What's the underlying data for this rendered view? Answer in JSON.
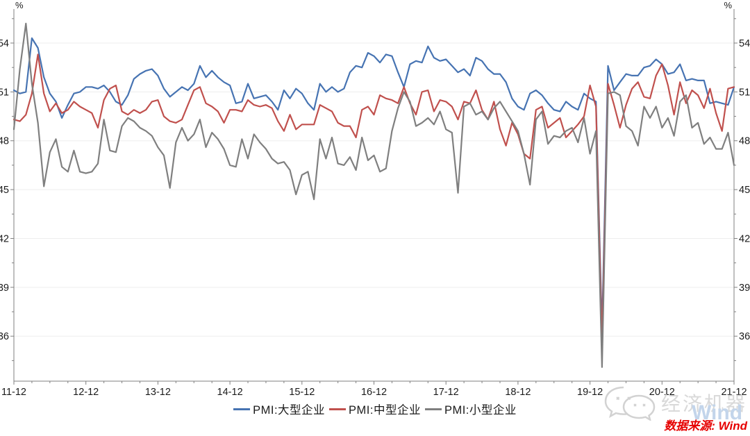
{
  "source_note": "数据来源: Wind",
  "watermark": {
    "brand_text": "经济机器",
    "wind_text": "Wind"
  },
  "colors": {
    "large": "#4673B2",
    "medium": "#C0504D",
    "small": "#7F7F7F",
    "axis": "#7F7F7F",
    "gridline": "#ededed",
    "tick_label": "#1a1a1a",
    "source_red": "#e60000",
    "watermark_gray": "#d9d9d9",
    "watermark_blue": "#c3d5eb"
  },
  "chart_data": {
    "type": "line",
    "title": "",
    "xlabel": "",
    "ylabel": "",
    "unit_label": "%",
    "grid": "horizontal",
    "legend_position": "bottom",
    "x_start": "2011-12",
    "x_end": "2021-12",
    "frequency": "monthly",
    "x_tick_labels": [
      "11-12",
      "12-12",
      "13-12",
      "14-12",
      "15-12",
      "16-12",
      "17-12",
      "18-12",
      "19-12",
      "20-12",
      "21-12"
    ],
    "y_ticks": [
      54,
      51,
      48,
      45,
      42,
      39,
      36
    ],
    "ylim": [
      33.3,
      55.9
    ],
    "series": [
      {
        "name": "PMI:大型企业",
        "color": "#4673B2",
        "values": [
          51.1,
          50.9,
          51.0,
          54.3,
          53.7,
          51.9,
          50.9,
          50.4,
          49.4,
          50.2,
          50.9,
          51.0,
          51.3,
          51.3,
          51.2,
          51.4,
          51.0,
          50.4,
          50.2,
          50.8,
          51.8,
          52.1,
          52.3,
          52.4,
          52.0,
          51.2,
          50.7,
          51.0,
          51.3,
          51.1,
          51.5,
          52.6,
          51.9,
          52.3,
          51.9,
          51.6,
          51.4,
          50.3,
          50.4,
          51.5,
          50.6,
          50.7,
          50.8,
          50.4,
          49.9,
          51.1,
          50.6,
          51.2,
          50.9,
          50.3,
          49.9,
          51.5,
          51.0,
          51.3,
          51.0,
          51.2,
          52.2,
          52.6,
          52.5,
          53.4,
          53.2,
          52.8,
          53.3,
          53.2,
          52.2,
          51.3,
          52.7,
          52.9,
          52.8,
          53.8,
          53.1,
          52.9,
          53.0,
          52.6,
          52.2,
          52.4,
          52.0,
          53.1,
          52.9,
          52.4,
          52.1,
          52.1,
          51.6,
          50.6,
          50.1,
          49.9,
          50.9,
          51.1,
          50.8,
          50.3,
          49.9,
          49.8,
          50.4,
          50.1,
          49.9,
          50.9,
          50.6,
          50.4,
          36.3,
          52.6,
          51.1,
          51.6,
          52.1,
          52.0,
          52.0,
          52.5,
          52.6,
          53.0,
          52.7,
          52.1,
          52.2,
          52.7,
          51.7,
          51.8,
          51.7,
          51.7,
          50.3,
          50.4,
          50.3,
          50.2,
          51.3
        ]
      },
      {
        "name": "PMI:中型企业",
        "color": "#C0504D",
        "values": [
          49.3,
          49.2,
          49.6,
          50.9,
          53.3,
          50.9,
          49.8,
          50.3,
          49.7,
          49.9,
          50.4,
          50.1,
          49.9,
          49.7,
          48.8,
          50.5,
          51.2,
          51.4,
          49.8,
          49.6,
          49.9,
          49.7,
          49.9,
          50.4,
          50.5,
          49.5,
          49.2,
          49.1,
          49.3,
          50.2,
          51.1,
          51.3,
          50.3,
          50.1,
          49.8,
          49.1,
          49.9,
          49.9,
          49.8,
          50.5,
          50.2,
          50.1,
          50.2,
          50.0,
          49.2,
          48.6,
          49.6,
          48.7,
          49.0,
          49.0,
          49.0,
          50.2,
          50.0,
          49.8,
          49.1,
          48.9,
          48.9,
          48.2,
          49.9,
          50.1,
          49.6,
          50.8,
          50.6,
          50.5,
          50.3,
          51.3,
          50.3,
          49.6,
          51.0,
          51.1,
          49.8,
          50.5,
          50.4,
          50.1,
          49.3,
          50.4,
          50.3,
          51.1,
          49.9,
          49.3,
          50.4,
          48.7,
          47.7,
          49.1,
          48.4,
          47.2,
          46.9,
          49.9,
          50.1,
          48.8,
          49.1,
          49.4,
          48.2,
          48.6,
          49.0,
          49.5,
          51.4,
          50.1,
          35.5,
          51.5,
          50.2,
          48.8,
          50.2,
          51.2,
          51.6,
          50.7,
          50.6,
          52.0,
          52.7,
          51.4,
          49.6,
          51.6,
          50.3,
          51.1,
          50.8,
          50.0,
          51.2,
          49.7,
          48.6,
          51.2,
          51.3
        ]
      },
      {
        "name": "PMI:小型企业",
        "color": "#7F7F7F",
        "values": [
          48.7,
          52.4,
          55.2,
          51.5,
          49.1,
          45.2,
          47.3,
          48.1,
          46.4,
          46.1,
          47.4,
          46.1,
          46.0,
          46.1,
          46.6,
          49.3,
          47.4,
          47.3,
          48.9,
          49.4,
          49.2,
          48.8,
          48.6,
          48.3,
          47.6,
          47.1,
          45.1,
          47.9,
          48.8,
          48.0,
          48.4,
          49.3,
          47.6,
          48.5,
          48.1,
          47.5,
          46.5,
          46.4,
          48.1,
          46.9,
          48.4,
          47.9,
          47.5,
          46.9,
          46.6,
          46.7,
          46.2,
          44.7,
          45.9,
          46.1,
          44.4,
          48.1,
          46.9,
          48.2,
          46.6,
          46.5,
          47.0,
          46.2,
          48.2,
          46.8,
          47.1,
          46.1,
          46.3,
          48.6,
          50.0,
          51.0,
          50.4,
          48.9,
          49.1,
          49.4,
          49.0,
          49.8,
          48.7,
          48.5,
          44.8,
          50.1,
          50.3,
          49.6,
          49.8,
          49.3,
          50.0,
          50.4,
          49.8,
          49.2,
          48.6,
          47.2,
          45.3,
          49.3,
          49.8,
          47.8,
          48.3,
          48.2,
          48.6,
          48.8,
          47.9,
          49.4,
          47.2,
          48.6,
          34.1,
          50.9,
          51.0,
          50.8,
          48.9,
          48.6,
          47.7,
          50.1,
          49.4,
          50.1,
          48.8,
          49.4,
          48.3,
          50.4,
          50.8,
          48.8,
          49.1,
          47.8,
          48.2,
          47.5,
          47.5,
          48.5,
          46.5
        ]
      }
    ]
  }
}
